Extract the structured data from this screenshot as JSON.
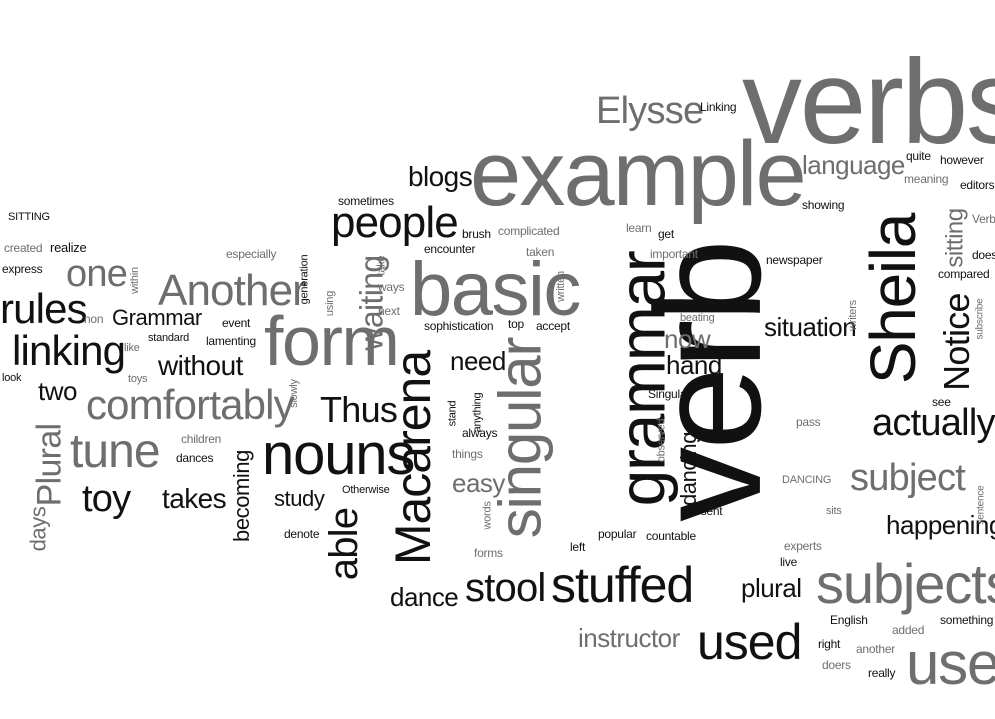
{
  "words": [
    "verb",
    "verbs",
    "example",
    "grammar",
    "Sheila",
    "basic",
    "singular",
    "form",
    "nouns",
    "subjects",
    "use",
    "Macarena",
    "people",
    "Another",
    "rules",
    "linking",
    "comfortably",
    "tune",
    "stuffed",
    "used",
    "stool",
    "able",
    "Elysse",
    "blogs",
    "language",
    "Notice",
    "actually",
    "subject",
    "happening",
    "situation",
    "one",
    "Plural",
    "toy",
    "Thus",
    "waiting",
    "need",
    "dancing",
    "instructor",
    "dance",
    "plural",
    "without",
    "takes",
    "two",
    "Grammar",
    "days",
    "hand",
    "now",
    "easy",
    "study",
    "becoming",
    "sitting",
    "Linking",
    "SITTING",
    "created",
    "realize",
    "express",
    "especially",
    "within",
    "non",
    "look",
    "like",
    "toys",
    "children",
    "dances",
    "standard",
    "event",
    "lamenting",
    "generation",
    "slowly",
    "using",
    "sometimes",
    "take",
    "ways",
    "next",
    "written",
    "taken",
    "complicated",
    "brush",
    "encounter",
    "sophistication",
    "top",
    "accept",
    "learn",
    "get",
    "important",
    "newspaper",
    "beating",
    "Singular",
    "stand",
    "anything",
    "always",
    "things",
    "observed",
    "words",
    "forms",
    "popular",
    "left",
    "countable",
    "present",
    "Otherwise",
    "denote",
    "DANCING",
    "pass",
    "sits",
    "live",
    "experts",
    "English",
    "another",
    "doers",
    "right",
    "really",
    "added",
    "something",
    "see",
    "sentence",
    "subscribe",
    "compared",
    "does",
    "Verb",
    "editors",
    "however",
    "quite",
    "meaning",
    "showing",
    "writers"
  ],
  "colors": {
    "background": "#ffffff",
    "dark": "#111111",
    "mid": "#6e6e6e",
    "light": "#a3a3a3"
  }
}
